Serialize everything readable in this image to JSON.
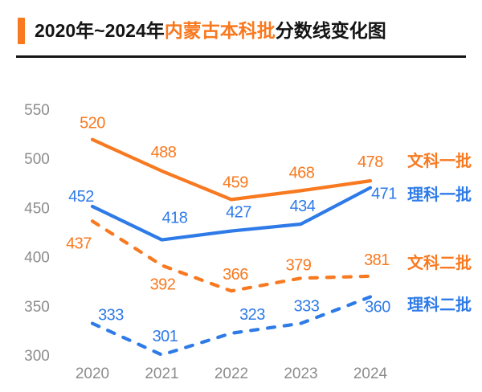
{
  "title": {
    "prefix": "2020年~2024年",
    "highlight": "内蒙古本科批",
    "suffix": "分数线变化图"
  },
  "colors": {
    "accent_orange": "#F8791F",
    "series_blue": "#2E7BE8",
    "axis_gray": "#8C8C8C",
    "title_black": "#141414"
  },
  "chart_data": {
    "type": "line",
    "title": "2020年~2024年内蒙古本科批分数线变化图",
    "x": [
      "2020",
      "2021",
      "2022",
      "2023",
      "2024"
    ],
    "series": [
      {
        "name": "文科一批",
        "values": [
          520,
          488,
          459,
          468,
          478
        ],
        "color": "#F8791F",
        "line_style": "solid"
      },
      {
        "name": "理科一批",
        "values": [
          452,
          418,
          427,
          434,
          471
        ],
        "color": "#2E7BE8",
        "line_style": "solid"
      },
      {
        "name": "文科二批",
        "values": [
          437,
          392,
          366,
          379,
          381
        ],
        "color": "#F8791F",
        "line_style": "dashed"
      },
      {
        "name": "理科二批",
        "values": [
          333,
          301,
          323,
          333,
          360
        ],
        "color": "#2E7BE8",
        "line_style": "dashed"
      }
    ],
    "ylim": [
      300,
      550
    ],
    "yticks": [
      300,
      350,
      400,
      450,
      500,
      550
    ],
    "grid": false,
    "axis_lines": false,
    "legend_position": "right-of-line-ends",
    "data_labels": true
  }
}
